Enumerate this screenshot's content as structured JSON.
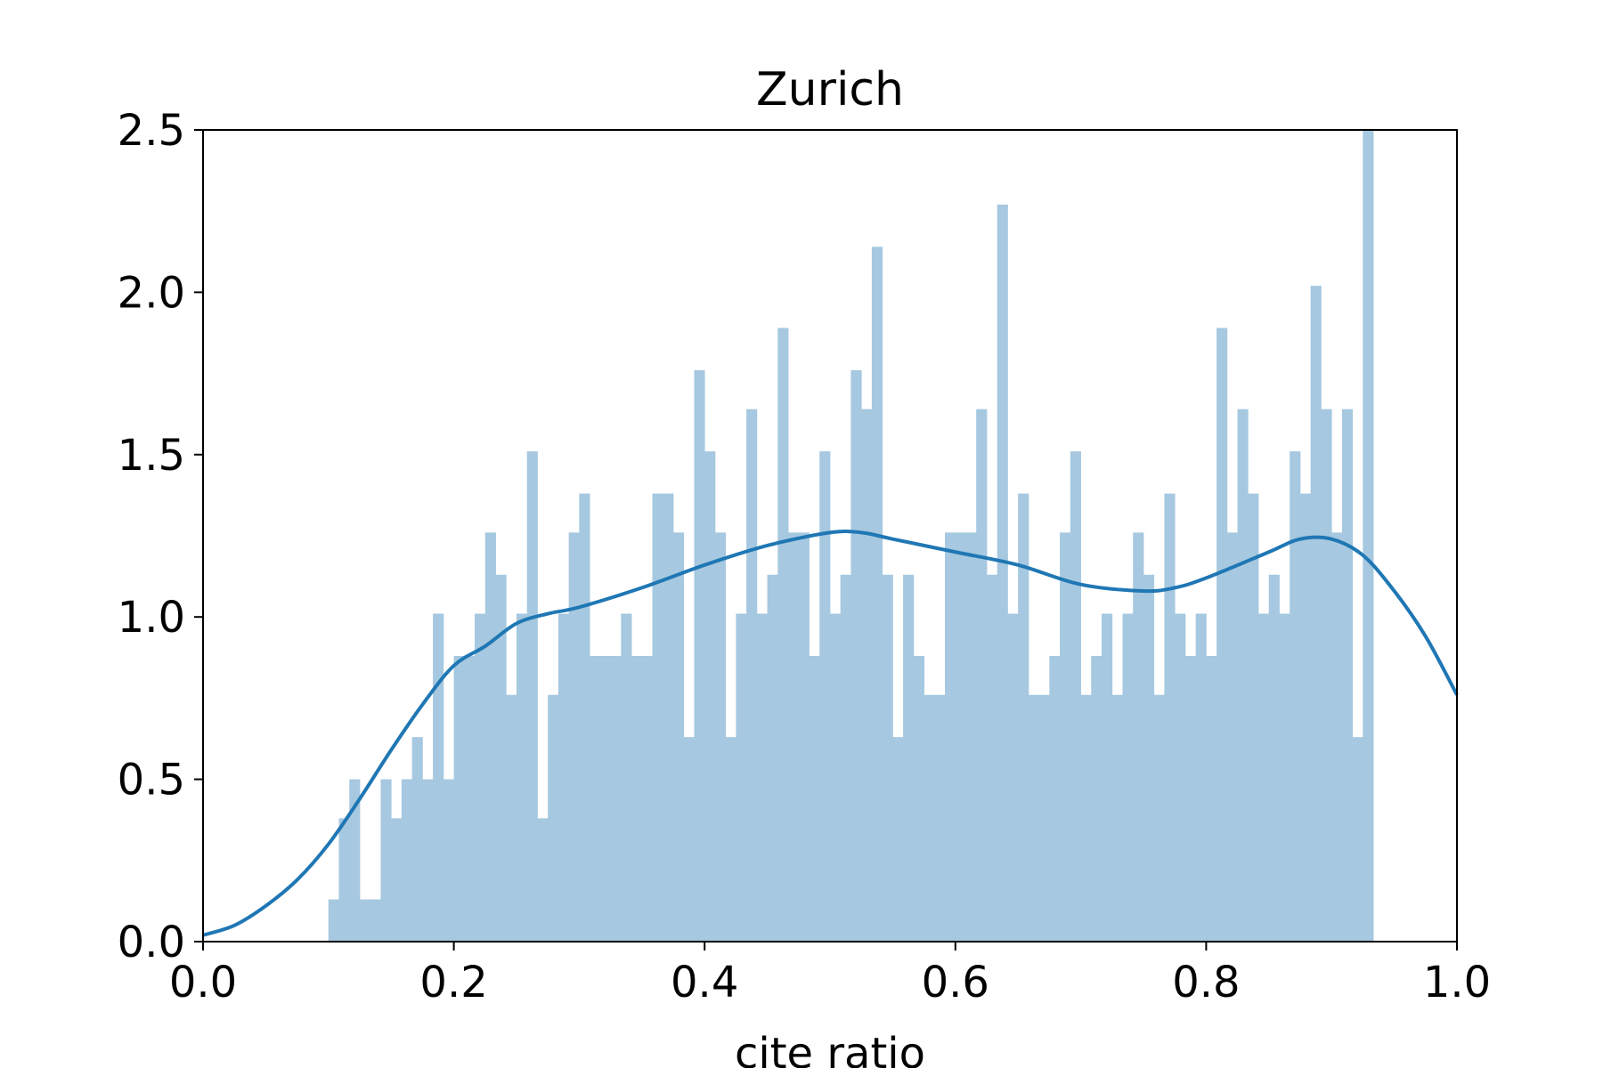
{
  "chart_data": {
    "type": "bar",
    "title": "Zurich",
    "xlabel": "cite ratio",
    "ylabel": "",
    "xlim": [
      0.0,
      1.0
    ],
    "ylim": [
      0.0,
      2.5
    ],
    "xticks": [
      "0.0",
      "0.2",
      "0.4",
      "0.6",
      "0.8",
      "1.0"
    ],
    "yticks": [
      "0.0",
      "0.5",
      "1.0",
      "1.5",
      "2.0",
      "2.5"
    ],
    "grid": false,
    "bins": {
      "start": 0.0,
      "width": 0.008333,
      "values": [
        0,
        0,
        0,
        0,
        0,
        0,
        0,
        0,
        0,
        0,
        0,
        0,
        0.13,
        0.38,
        0.5,
        0.13,
        0.13,
        0.5,
        0.38,
        0.5,
        0.63,
        0.5,
        1.01,
        0.5,
        0.88,
        0.88,
        1.01,
        1.26,
        1.13,
        0.76,
        1.01,
        1.51,
        0.38,
        0.76,
        1.01,
        1.26,
        1.38,
        0.88,
        0.88,
        0.88,
        1.01,
        0.88,
        0.88,
        1.38,
        1.38,
        1.26,
        0.63,
        1.76,
        1.51,
        1.26,
        0.63,
        1.01,
        1.64,
        1.01,
        1.13,
        1.89,
        1.26,
        1.26,
        0.88,
        1.51,
        1.01,
        1.13,
        1.76,
        1.64,
        2.14,
        1.13,
        0.63,
        1.13,
        0.88,
        0.76,
        0.76,
        1.26,
        1.26,
        1.26,
        1.64,
        1.13,
        2.27,
        1.01,
        1.38,
        0.76,
        0.76,
        0.88,
        1.26,
        1.51,
        0.76,
        0.88,
        1.01,
        0.76,
        1.01,
        1.26,
        1.13,
        0.76,
        1.38,
        1.01,
        0.88,
        1.01,
        0.88,
        1.89,
        1.26,
        1.64,
        1.38,
        1.01,
        1.13,
        1.01,
        1.51,
        1.38,
        2.02,
        1.64,
        1.26,
        1.64,
        0.63,
        2.5
      ]
    },
    "series": [
      {
        "kind": "histogram",
        "color": "#a6c8e0"
      },
      {
        "kind": "kde",
        "color": "#1f77b4"
      }
    ],
    "kde": {
      "x": [
        0.0,
        0.025,
        0.05,
        0.075,
        0.1,
        0.125,
        0.15,
        0.175,
        0.2,
        0.225,
        0.25,
        0.275,
        0.3,
        0.35,
        0.4,
        0.45,
        0.5,
        0.525,
        0.55,
        0.6,
        0.65,
        0.7,
        0.75,
        0.775,
        0.8,
        0.85,
        0.875,
        0.9,
        0.925,
        0.95,
        0.975,
        1.0
      ],
      "y": [
        0.02,
        0.05,
        0.11,
        0.19,
        0.3,
        0.44,
        0.59,
        0.73,
        0.85,
        0.91,
        0.98,
        1.01,
        1.03,
        1.09,
        1.16,
        1.22,
        1.26,
        1.26,
        1.24,
        1.2,
        1.16,
        1.1,
        1.08,
        1.09,
        1.12,
        1.2,
        1.24,
        1.24,
        1.19,
        1.08,
        0.94,
        0.76
      ]
    }
  }
}
